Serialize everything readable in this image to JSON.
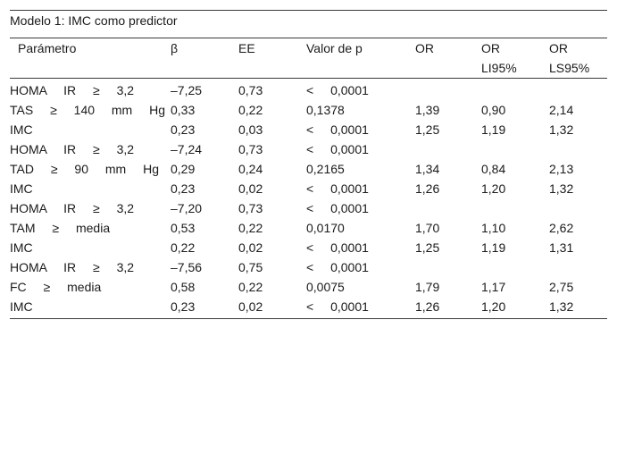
{
  "table": {
    "caption": "Modelo 1: IMC como predictor",
    "headers": [
      "Parámetro",
      "β",
      "EE",
      "Valor de p",
      "OR",
      "OR\nLI95%",
      "OR\nLS95%"
    ],
    "rows": [
      {
        "param": "HOMA IR ≥ 3,2",
        "beta": "–7,25",
        "ee": "0,73",
        "p": "< 0,0001",
        "or": "",
        "li": "",
        "ls": ""
      },
      {
        "param": "TAS ≥ 140 mm Hg",
        "beta": "0,33",
        "ee": "0,22",
        "p": "0,1378",
        "or": "1,39",
        "li": "0,90",
        "ls": "2,14"
      },
      {
        "param": "IMC",
        "beta": "0,23",
        "ee": "0,03",
        "p": "< 0,0001",
        "or": "1,25",
        "li": "1,19",
        "ls": "1,32"
      },
      {
        "param": "HOMA IR ≥ 3,2",
        "beta": "–7,24",
        "ee": "0,73",
        "p": "< 0,0001",
        "or": "",
        "li": "",
        "ls": ""
      },
      {
        "param": "TAD ≥ 90 mm Hg",
        "beta": "0,29",
        "ee": "0,24",
        "p": "0,2165",
        "or": "1,34",
        "li": "0,84",
        "ls": "2,13"
      },
      {
        "param": "IMC",
        "beta": "0,23",
        "ee": "0,02",
        "p": "< 0,0001",
        "or": "1,26",
        "li": "1,20",
        "ls": "1,32"
      },
      {
        "param": "HOMA IR ≥ 3,2",
        "beta": "–7,20",
        "ee": "0,73",
        "p": "< 0,0001",
        "or": "",
        "li": "",
        "ls": ""
      },
      {
        "param": "TAM ≥ media",
        "beta": "0,53",
        "ee": "0,22",
        "p": "0,0170",
        "or": "1,70",
        "li": "1,10",
        "ls": "2,62"
      },
      {
        "param": "IMC",
        "beta": "0,22",
        "ee": "0,02",
        "p": "< 0,0001",
        "or": "1,25",
        "li": "1,19",
        "ls": "1,31"
      },
      {
        "param": "HOMA IR ≥ 3,2",
        "beta": "–7,56",
        "ee": "0,75",
        "p": "< 0,0001",
        "or": "",
        "li": "",
        "ls": ""
      },
      {
        "param": "FC ≥ media",
        "beta": "0,58",
        "ee": "0,22",
        "p": "0,0075",
        "or": "1,79",
        "li": "1,17",
        "ls": "2,75"
      },
      {
        "param": "IMC",
        "beta": "0,23",
        "ee": "0,02",
        "p": "< 0,0001",
        "or": "1,26",
        "li": "1,20",
        "ls": "1,32"
      }
    ]
  }
}
